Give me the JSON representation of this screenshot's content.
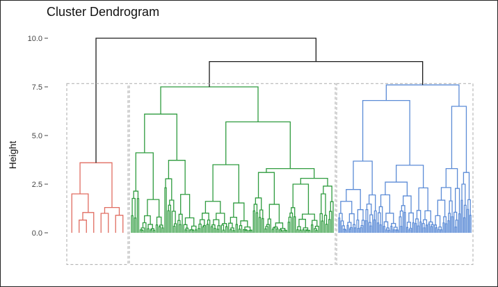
{
  "chart_data": {
    "type": "dendrogram",
    "title": "Cluster Dendrogram",
    "xlabel": "",
    "ylabel": "Height",
    "ylim": [
      -1.7,
      10.6
    ],
    "yticks": [
      0.0,
      2.5,
      5.0,
      7.5,
      10.0
    ],
    "ytick_labels": [
      "0.0",
      "2.5",
      "5.0",
      "7.5",
      "10.0"
    ],
    "grid": false,
    "cut_height": 7.6,
    "root_height": 10.0,
    "clusters": [
      {
        "name": "cluster-1",
        "color": "#E06C60",
        "leaves": 8,
        "merge_heights": [
          3.6,
          2.2,
          2.0,
          1.3,
          1.2,
          1.0,
          0.9
        ]
      },
      {
        "name": "cluster-2",
        "color": "#2E9B3E",
        "leaves": 140,
        "merge_heights": [
          7.5,
          7.1,
          6.1,
          5.7,
          4.7,
          3.5,
          3.3,
          3.2,
          3.1,
          2.8,
          2.6,
          2.5,
          2.4,
          2.3,
          2.0,
          1.6,
          1.3,
          1.1,
          0.8,
          0.6
        ]
      },
      {
        "name": "cluster-3",
        "color": "#5B8BD6",
        "leaves": 110,
        "merge_heights": [
          7.6,
          7.4,
          6.8,
          6.5,
          5.6,
          3.3,
          3.1,
          2.8,
          2.5,
          1.7,
          1.5,
          1.2,
          0.9,
          0.6
        ]
      }
    ],
    "upper_links": [
      {
        "join": [
          "cluster-2",
          "cluster-3"
        ],
        "height": 8.8
      },
      {
        "join": [
          "cluster-1",
          "clusters-2-3"
        ],
        "height": 10.0
      }
    ]
  }
}
